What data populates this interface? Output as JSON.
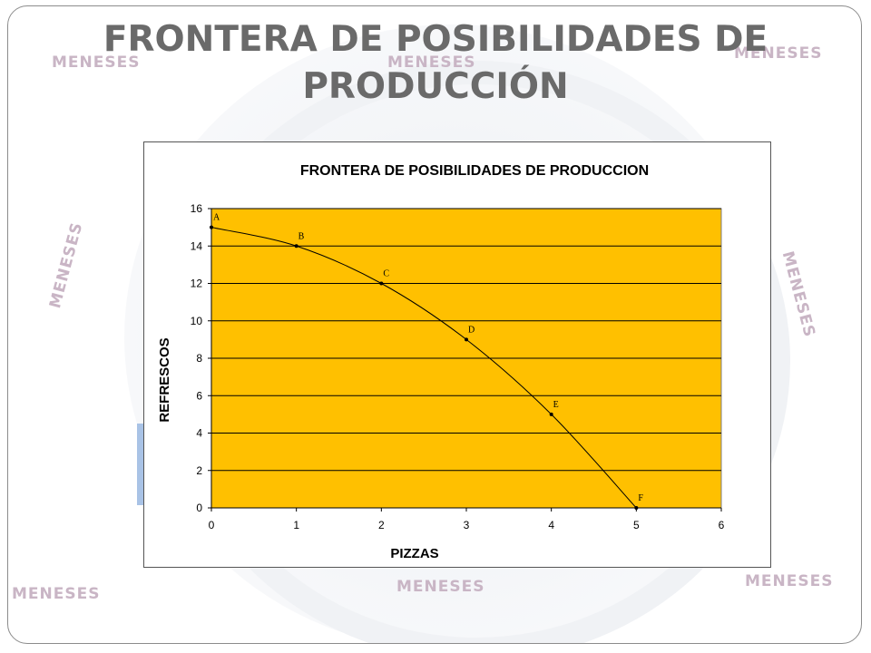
{
  "slide": {
    "title_line1": "FRONTERA DE POSIBILIDADES DE",
    "title_line2": "PRODUCCIÓN",
    "watermark_text": "MENESES"
  },
  "chart_data": {
    "type": "line",
    "title": "FRONTERA DE POSIBILIDADES DE PRODUCCION",
    "xlabel": "PIZZAS",
    "ylabel": "REFRESCOS",
    "xlim": [
      0,
      6
    ],
    "ylim": [
      0,
      16
    ],
    "x_ticks": [
      0,
      1,
      2,
      3,
      4,
      5,
      6
    ],
    "y_ticks": [
      0,
      2,
      4,
      6,
      8,
      10,
      12,
      14,
      16
    ],
    "grid": "horizontal",
    "legend": "none",
    "series": [
      {
        "points": [
          {
            "label": "A",
            "x": 0,
            "y": 15
          },
          {
            "label": "B",
            "x": 1,
            "y": 14
          },
          {
            "label": "C",
            "x": 2,
            "y": 12
          },
          {
            "label": "D",
            "x": 3,
            "y": 9
          },
          {
            "label": "E",
            "x": 4,
            "y": 5
          },
          {
            "label": "F",
            "x": 5,
            "y": 0
          }
        ]
      }
    ],
    "colors": {
      "plot_background": "#FFC000",
      "line": "#000000",
      "gridline": "#000000"
    }
  }
}
